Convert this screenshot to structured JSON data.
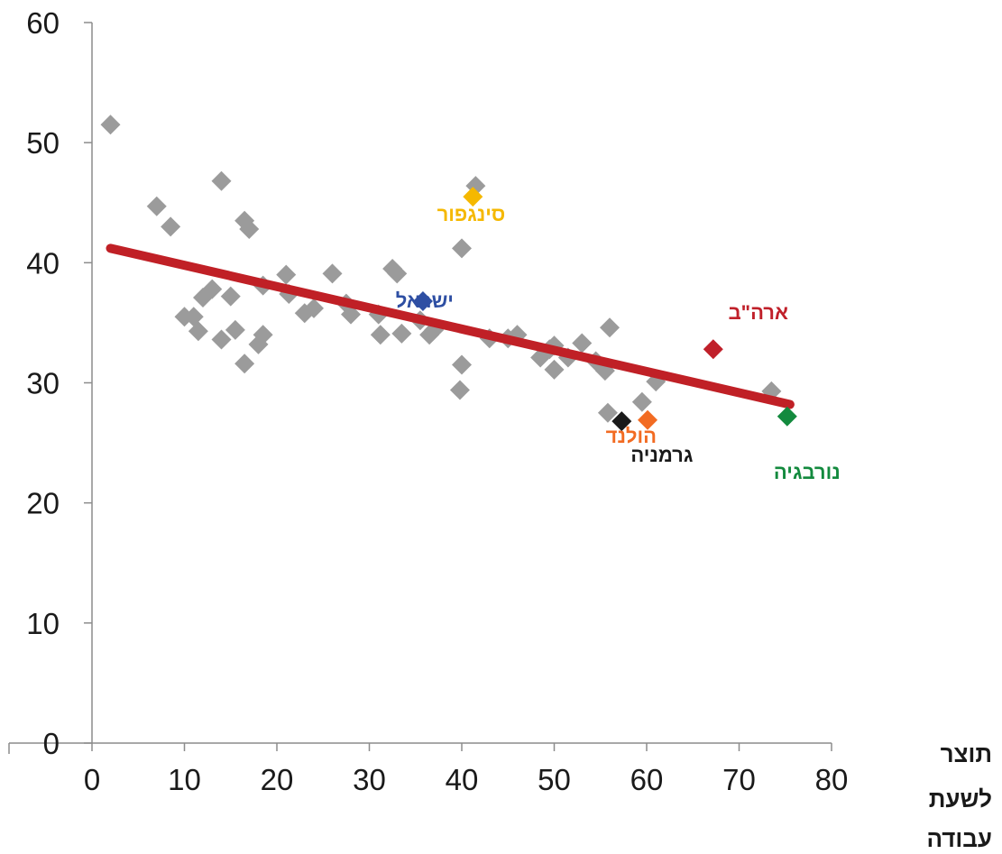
{
  "chart_data": {
    "type": "scatter",
    "title": "",
    "xlabel": "",
    "ylabel": "",
    "xlim": [
      0,
      80
    ],
    "ylim": [
      0,
      60
    ],
    "x_ticks": [
      0,
      10,
      20,
      30,
      40,
      50,
      60,
      70,
      80
    ],
    "y_ticks": [
      0,
      10,
      20,
      30,
      40,
      50,
      60
    ],
    "x_axis_title_lines": [
      "תוצר",
      "לשעת",
      "עבודה"
    ],
    "grid": false,
    "marker": "diamond",
    "colors": {
      "other": "#9b9b9b",
      "trend": "#c02026"
    },
    "series": [
      {
        "color": "#9b9b9b",
        "points": [
          [
            2,
            51.5
          ],
          [
            7,
            44.7
          ],
          [
            8.5,
            43
          ],
          [
            14,
            46.8
          ],
          [
            16.5,
            43.5
          ],
          [
            17,
            42.8
          ],
          [
            10,
            35.5
          ],
          [
            11,
            35.5
          ],
          [
            11.5,
            34.3
          ],
          [
            12,
            37.1
          ],
          [
            13,
            37.8
          ],
          [
            14,
            33.6
          ],
          [
            15,
            37.2
          ],
          [
            15.5,
            34.4
          ],
          [
            16.5,
            31.6
          ],
          [
            18,
            33.2
          ],
          [
            18.5,
            34
          ],
          [
            18.5,
            38.1
          ],
          [
            21,
            39
          ],
          [
            21.3,
            37.4
          ],
          [
            23,
            35.8
          ],
          [
            24,
            36.2
          ],
          [
            26,
            39.1
          ],
          [
            27.5,
            36.6
          ],
          [
            28,
            35.7
          ],
          [
            31,
            35.7
          ],
          [
            31.2,
            34
          ],
          [
            32.5,
            39.5
          ],
          [
            33,
            39.1
          ],
          [
            33.5,
            34.1
          ],
          [
            35.5,
            35.2
          ],
          [
            36.5,
            34
          ],
          [
            37,
            34.4
          ],
          [
            40,
            41.2
          ],
          [
            40,
            31.5
          ],
          [
            39.8,
            29.4
          ],
          [
            41.5,
            46.4
          ],
          [
            43,
            33.7
          ],
          [
            45,
            33.7
          ],
          [
            46,
            34
          ],
          [
            48.5,
            32.1
          ],
          [
            49.5,
            32.8
          ],
          [
            50,
            31.1
          ],
          [
            50,
            33.1
          ],
          [
            51.5,
            32.1
          ],
          [
            53,
            33.3
          ],
          [
            54.5,
            31.8
          ],
          [
            55.5,
            31
          ],
          [
            56,
            34.6
          ],
          [
            55.8,
            27.5
          ],
          [
            59.5,
            28.4
          ],
          [
            61,
            30.1
          ],
          [
            73.5,
            29.3
          ]
        ]
      }
    ],
    "highlighted": [
      {
        "name": "סינגפור",
        "x": 41.2,
        "y": 45.5,
        "color": "#f5b800"
      },
      {
        "name": "ישראל",
        "x": 35.8,
        "y": 36.8,
        "color": "#2e4fa3"
      },
      {
        "name": "ארה\"ב",
        "x": 67.2,
        "y": 32.8,
        "color": "#c0202a"
      },
      {
        "name": "גרמניה",
        "x": 57.3,
        "y": 26.8,
        "color": "#1a1a1a"
      },
      {
        "name": "הולנד",
        "x": 60.1,
        "y": 26.9,
        "color": "#f26b22"
      },
      {
        "name": "נורבגיה",
        "x": 75.2,
        "y": 27.2,
        "color": "#138a3e"
      }
    ],
    "trendline": {
      "x": [
        2,
        75.5
      ],
      "y": [
        41.2,
        28.2
      ],
      "color": "#c02026"
    }
  }
}
